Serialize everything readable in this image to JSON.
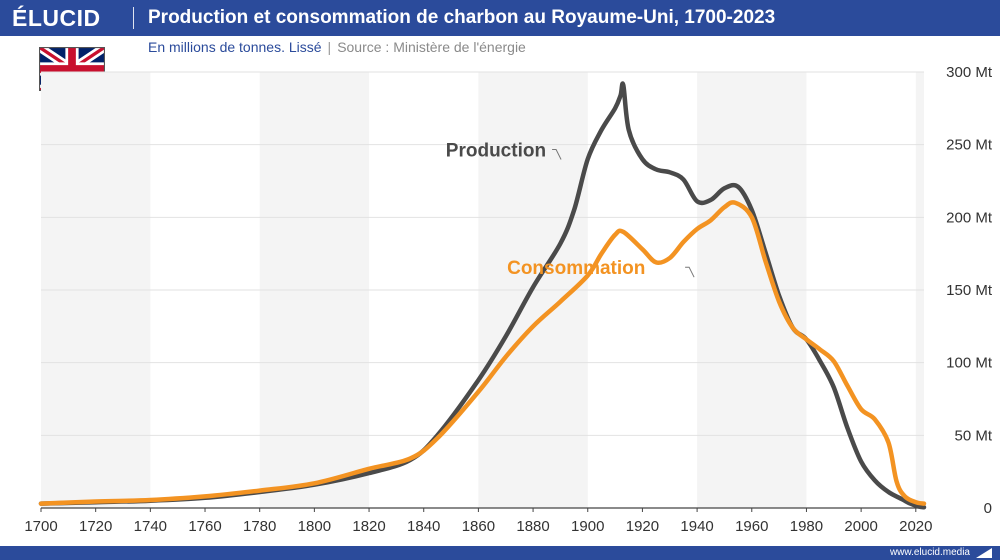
{
  "header": {
    "logo": "ÉLUCID",
    "title": "Production et consommation de charbon au Royaume-Uni, 1700-2023"
  },
  "subtitle": {
    "unit": "En millions de tonnes. Lissé",
    "separator": "|",
    "source": "Source : Ministère de l'énergie"
  },
  "flag": {
    "country": "Royaume-Uni",
    "icon": "uk-flag-icon"
  },
  "footer": {
    "url": "www.elucid.media",
    "icon": "elucid-mark-icon"
  },
  "colors": {
    "brand": "#2b4b9b",
    "production": "#4a4a4a",
    "consommation": "#f39322",
    "band": "#f4f4f4",
    "grid": "#e2e2e2",
    "axis": "#444444"
  },
  "chart_data": {
    "type": "line",
    "title": "Production et consommation de charbon au Royaume-Uni, 1700-2023",
    "xlabel": "",
    "ylabel": "En millions de tonnes",
    "xlim": [
      1700,
      2023
    ],
    "ylim": [
      0,
      300
    ],
    "x_ticks": [
      1700,
      1720,
      1740,
      1760,
      1780,
      1800,
      1820,
      1840,
      1860,
      1880,
      1900,
      1920,
      1940,
      1960,
      1980,
      2000,
      2020
    ],
    "y_ticks": [
      0,
      50,
      100,
      150,
      200,
      250,
      300
    ],
    "y_tick_labels": [
      "0",
      "50 Mt",
      "100 Mt",
      "150 Mt",
      "200 Mt",
      "250 Mt",
      "300 Mt"
    ],
    "shaded_bands": [
      [
        1700,
        1740
      ],
      [
        1780,
        1820
      ],
      [
        1860,
        1900
      ],
      [
        1940,
        1980
      ],
      [
        2020,
        2023
      ]
    ],
    "series": [
      {
        "name": "Production",
        "label_year": 1895,
        "label_value": 246,
        "label_align": "end",
        "points": [
          [
            1700,
            3
          ],
          [
            1720,
            4
          ],
          [
            1740,
            5
          ],
          [
            1760,
            7
          ],
          [
            1780,
            11
          ],
          [
            1800,
            16
          ],
          [
            1820,
            24
          ],
          [
            1835,
            33
          ],
          [
            1845,
            50
          ],
          [
            1860,
            88
          ],
          [
            1870,
            118
          ],
          [
            1880,
            152
          ],
          [
            1890,
            182
          ],
          [
            1895,
            205
          ],
          [
            1900,
            240
          ],
          [
            1905,
            260
          ],
          [
            1910,
            275
          ],
          [
            1912,
            284
          ],
          [
            1913,
            291
          ],
          [
            1915,
            260
          ],
          [
            1920,
            240
          ],
          [
            1925,
            233
          ],
          [
            1930,
            231
          ],
          [
            1935,
            226
          ],
          [
            1940,
            211
          ],
          [
            1945,
            212
          ],
          [
            1950,
            220
          ],
          [
            1955,
            221
          ],
          [
            1960,
            205
          ],
          [
            1965,
            176
          ],
          [
            1970,
            146
          ],
          [
            1975,
            124
          ],
          [
            1980,
            116
          ],
          [
            1985,
            101
          ],
          [
            1990,
            83
          ],
          [
            1995,
            55
          ],
          [
            2000,
            32
          ],
          [
            2005,
            19
          ],
          [
            2010,
            11
          ],
          [
            2015,
            6
          ],
          [
            2018,
            3
          ],
          [
            2021,
            1
          ],
          [
            2023,
            0.5
          ]
        ]
      },
      {
        "name": "Consommation",
        "label_year": 1940,
        "label_value": 165,
        "label_align": "start",
        "points": [
          [
            1700,
            3
          ],
          [
            1720,
            4.5
          ],
          [
            1740,
            5.5
          ],
          [
            1760,
            8
          ],
          [
            1780,
            12
          ],
          [
            1800,
            17
          ],
          [
            1820,
            27
          ],
          [
            1835,
            34
          ],
          [
            1845,
            48
          ],
          [
            1860,
            80
          ],
          [
            1870,
            104
          ],
          [
            1880,
            125
          ],
          [
            1890,
            142
          ],
          [
            1900,
            160
          ],
          [
            1905,
            175
          ],
          [
            1910,
            188
          ],
          [
            1913,
            190
          ],
          [
            1920,
            178
          ],
          [
            1925,
            169
          ],
          [
            1930,
            172
          ],
          [
            1935,
            183
          ],
          [
            1940,
            192
          ],
          [
            1945,
            198
          ],
          [
            1950,
            207
          ],
          [
            1954,
            210
          ],
          [
            1960,
            200
          ],
          [
            1965,
            170
          ],
          [
            1970,
            142
          ],
          [
            1975,
            124
          ],
          [
            1980,
            116
          ],
          [
            1985,
            109
          ],
          [
            1990,
            101
          ],
          [
            1995,
            84
          ],
          [
            2000,
            68
          ],
          [
            2005,
            61
          ],
          [
            2010,
            45
          ],
          [
            2013,
            18
          ],
          [
            2016,
            8
          ],
          [
            2020,
            4
          ],
          [
            2023,
            3
          ]
        ]
      }
    ]
  }
}
